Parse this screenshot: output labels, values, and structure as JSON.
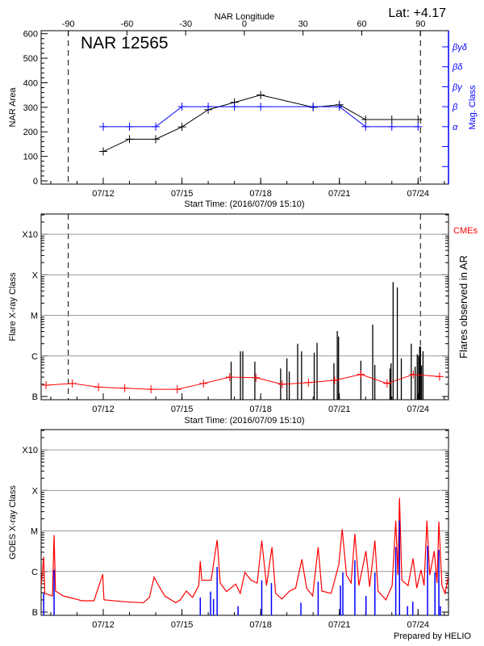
{
  "time_axis": {
    "start": "2016-07-09T15:10",
    "end": "2016-07-25T03:50",
    "ticks": [
      "2016-07-12T00:00",
      "2016-07-15T00:00",
      "2016-07-18T00:00",
      "2016-07-21T00:00",
      "2016-07-24T00:00"
    ],
    "tick_labels": [
      "07/12",
      "07/15",
      "07/18",
      "07/21",
      "07/24"
    ],
    "label": "Start Time: (2016/07/09 15:10)"
  },
  "footer": {
    "prepared_by": "Prepared by HELIO"
  },
  "chart_data": [
    {
      "type": "line",
      "title": "NAR 12565",
      "latitude_label": "Lat:  +4.17",
      "top_axis": {
        "label": "NAR Longitude",
        "ticks": [
          -90,
          -60,
          -30,
          0,
          30,
          60,
          90
        ],
        "tick_labels": [
          "-90",
          "-60",
          "-30",
          "0",
          "30",
          "60",
          "90"
        ],
        "limb_dates": {
          "-90": "2016-07-10T16:00",
          "90": "2016-07-24T02:10"
        },
        "dashed_lines": [
          -90,
          90
        ]
      },
      "ylabel": "NAR Area",
      "ylim": [
        0,
        600
      ],
      "yticks": [
        0,
        100,
        200,
        300,
        400,
        500,
        600
      ],
      "ytick_labels": [
        "0",
        "100",
        "200",
        "300",
        "400",
        "500",
        "600"
      ],
      "right_axis": {
        "label": "Mag. Class",
        "color": "#0000ff",
        "ylim": [
          -0.88,
          6.81
        ],
        "tick_labels": [
          "",
          "",
          "α",
          "β",
          "βγ",
          "βδ",
          "βγδ"
        ]
      },
      "area_series": {
        "color": "#000000",
        "points": [
          {
            "t": "2016-07-12T00:00",
            "v": 120
          },
          {
            "t": "2016-07-13T00:00",
            "v": 170
          },
          {
            "t": "2016-07-14T00:00",
            "v": 170
          },
          {
            "t": "2016-07-15T00:00",
            "v": 220
          },
          {
            "t": "2016-07-16T00:00",
            "v": 290
          },
          {
            "t": "2016-07-17T00:00",
            "v": 320
          },
          {
            "t": "2016-07-18T00:00",
            "v": 350
          },
          {
            "t": "2016-07-20T00:00",
            "v": 300
          },
          {
            "t": "2016-07-21T00:00",
            "v": 310
          },
          {
            "t": "2016-07-22T00:00",
            "v": 250
          },
          {
            "t": "2016-07-23T00:00",
            "v": 250
          },
          {
            "t": "2016-07-24T00:00",
            "v": 250
          }
        ]
      },
      "mag_series": {
        "color": "#0000ff",
        "points": [
          {
            "t": "2016-07-12T00:00",
            "c": "α"
          },
          {
            "t": "2016-07-13T00:00",
            "c": "α"
          },
          {
            "t": "2016-07-14T00:00",
            "c": "α"
          },
          {
            "t": "2016-07-15T00:00",
            "c": "β"
          },
          {
            "t": "2016-07-16T00:00",
            "c": "β"
          },
          {
            "t": "2016-07-17T00:00",
            "c": "β"
          },
          {
            "t": "2016-07-18T00:00",
            "c": "β"
          },
          {
            "t": "2016-07-20T00:00",
            "c": "β"
          },
          {
            "t": "2016-07-21T00:00",
            "c": "β"
          },
          {
            "t": "2016-07-22T00:00",
            "c": "α"
          },
          {
            "t": "2016-07-23T00:00",
            "c": "α"
          },
          {
            "t": "2016-07-24T00:00",
            "c": "α"
          }
        ]
      }
    },
    {
      "type": "bar",
      "ylabel": "Flare X-ray Class",
      "right_label": "Flares observed in AR",
      "legend": {
        "label": "CMEs",
        "color": "#ff0000"
      },
      "yscale": "log",
      "ylim": [
        1e-07,
        0.00316
      ],
      "yticks": [
        1e-07,
        1e-06,
        1e-05,
        0.0001,
        0.001
      ],
      "ytick_labels": [
        "B",
        "C",
        "M",
        "X",
        "X10"
      ],
      "grid": true,
      "flares": [
        {
          "t": "2016-07-16T21:00",
          "class": "B7.2"
        },
        {
          "t": "2016-07-17T05:30",
          "class": "C1.3"
        },
        {
          "t": "2016-07-17T07:40",
          "class": "C1.3"
        },
        {
          "t": "2016-07-17T18:40",
          "class": "B7.2"
        },
        {
          "t": "2016-07-18T18:15",
          "class": "B4.9"
        },
        {
          "t": "2016-07-19T00:00",
          "class": "B8.7"
        },
        {
          "t": "2016-07-19T02:10",
          "class": "B4.1"
        },
        {
          "t": "2016-07-19T09:50",
          "class": "C2.0"
        },
        {
          "t": "2016-07-19T13:25",
          "class": "C1.3"
        },
        {
          "t": "2016-07-20T01:00",
          "class": "C1.2"
        },
        {
          "t": "2016-07-20T03:35",
          "class": "C2.1"
        },
        {
          "t": "2016-07-20T19:00",
          "class": "B6.6"
        },
        {
          "t": "2016-07-20T22:05",
          "class": "C4.1"
        },
        {
          "t": "2016-07-20T23:15",
          "class": "C3.0"
        },
        {
          "t": "2016-07-21T19:40",
          "class": "B7.6"
        },
        {
          "t": "2016-07-22T06:30",
          "class": "C5.9"
        },
        {
          "t": "2016-07-22T08:25",
          "class": "B6.0"
        },
        {
          "t": "2016-07-22T22:20",
          "class": "B4.9"
        },
        {
          "t": "2016-07-22T23:15",
          "class": "B6.6"
        },
        {
          "t": "2016-07-23T01:10",
          "class": "M6.6"
        },
        {
          "t": "2016-07-23T05:00",
          "class": "M4.9"
        },
        {
          "t": "2016-07-23T08:40",
          "class": "B8.7"
        },
        {
          "t": "2016-07-23T17:45",
          "class": "C2.0"
        },
        {
          "t": "2016-07-23T21:20",
          "class": "B5.4"
        },
        {
          "t": "2016-07-23T23:15",
          "class": "C1.1"
        },
        {
          "t": "2016-07-24T00:30",
          "class": "C1.0"
        },
        {
          "t": "2016-07-24T01:25",
          "class": "C1.7"
        },
        {
          "t": "2016-07-24T02:10",
          "class": "C1.7"
        },
        {
          "t": "2016-07-24T03:10",
          "class": "B5.8"
        },
        {
          "t": "2016-07-24T04:30",
          "class": "C1.3"
        }
      ],
      "red_series": {
        "color": "#ff0000",
        "points": [
          {
            "t": "2016-07-09T19:40",
            "v": 1.9e-07
          },
          {
            "t": "2016-07-10T19:40",
            "v": 2.1e-07
          },
          {
            "t": "2016-07-11T19:40",
            "v": 1.7e-07
          },
          {
            "t": "2016-07-12T19:40",
            "v": 1.6e-07
          },
          {
            "t": "2016-07-13T19:40",
            "v": 1.5e-07
          },
          {
            "t": "2016-07-14T19:40",
            "v": 1.5e-07
          },
          {
            "t": "2016-07-15T19:40",
            "v": 2.1e-07
          },
          {
            "t": "2016-07-16T19:40",
            "v": 3e-07
          },
          {
            "t": "2016-07-17T19:40",
            "v": 2.9e-07
          },
          {
            "t": "2016-07-18T19:40",
            "v": 2e-07
          },
          {
            "t": "2016-07-19T19:40",
            "v": 2.2e-07
          },
          {
            "t": "2016-07-20T19:40",
            "v": 2.5e-07
          },
          {
            "t": "2016-07-21T19:40",
            "v": 3.5e-07
          },
          {
            "t": "2016-07-22T19:40",
            "v": 2.1e-07
          },
          {
            "t": "2016-07-23T19:40",
            "v": 3.5e-07
          },
          {
            "t": "2016-07-24T19:40",
            "v": 3.1e-07
          }
        ]
      }
    },
    {
      "type": "line",
      "ylabel": "GOES X-ray Class",
      "yscale": "log",
      "ylim": [
        1e-07,
        0.00316
      ],
      "yticks": [
        1e-07,
        1e-06,
        1e-05,
        0.0001,
        0.001
      ],
      "ytick_labels": [
        "B",
        "C",
        "M",
        "X",
        "X10"
      ],
      "grid": true,
      "series": [
        {
          "color": "#ff0000",
          "style": "line",
          "points": [
            {
              "t": "2016-07-09T15:10",
              "v": 4.5e-07
            },
            {
              "t": "2016-07-09T17:30",
              "v": 2.3e-06
            },
            {
              "t": "2016-07-09T18:30",
              "v": 2.9e-07
            },
            {
              "t": "2016-07-10T01:30",
              "v": 2.5e-07
            },
            {
              "t": "2016-07-10T03:00",
              "v": 7.9e-06
            },
            {
              "t": "2016-07-10T04:20",
              "v": 3.3e-07
            },
            {
              "t": "2016-07-10T11:20",
              "v": 2.5e-07
            },
            {
              "t": "2016-07-10T22:40",
              "v": 2.1e-07
            },
            {
              "t": "2016-07-11T04:20",
              "v": 1.9e-07
            },
            {
              "t": "2016-07-11T15:30",
              "v": 1.9e-07
            },
            {
              "t": "2016-07-11T23:30",
              "v": 8.5e-07
            },
            {
              "t": "2016-07-12T00:40",
              "v": 2e-07
            },
            {
              "t": "2016-07-12T19:40",
              "v": 1.8e-07
            },
            {
              "t": "2016-07-13T12:40",
              "v": 1.7e-07
            },
            {
              "t": "2016-07-13T18:15",
              "v": 2.3e-07
            },
            {
              "t": "2016-07-13T22:30",
              "v": 7.3e-07
            },
            {
              "t": "2016-07-14T02:40",
              "v": 4.5e-07
            },
            {
              "t": "2016-07-14T08:20",
              "v": 2.5e-07
            },
            {
              "t": "2016-07-14T18:15",
              "v": 1.7e-07
            },
            {
              "t": "2016-07-14T22:25",
              "v": 2e-07
            },
            {
              "t": "2016-07-15T04:00",
              "v": 3.3e-07
            },
            {
              "t": "2016-07-15T09:40",
              "v": 2.3e-07
            },
            {
              "t": "2016-07-15T15:20",
              "v": 4.5e-07
            },
            {
              "t": "2016-07-15T16:45",
              "v": 1.8e-06
            },
            {
              "t": "2016-07-15T18:10",
              "v": 6.1e-07
            },
            {
              "t": "2016-07-16T02:40",
              "v": 6.1e-07
            },
            {
              "t": "2016-07-16T08:10",
              "v": 6e-06
            },
            {
              "t": "2016-07-16T11:00",
              "v": 5.2e-07
            },
            {
              "t": "2016-07-16T16:40",
              "v": 3.2e-07
            },
            {
              "t": "2016-07-17T01:10",
              "v": 4.9e-07
            },
            {
              "t": "2016-07-17T05:20",
              "v": 2.9e-07
            },
            {
              "t": "2016-07-17T09:35",
              "v": 9.5e-07
            },
            {
              "t": "2016-07-17T15:10",
              "v": 6.1e-07
            },
            {
              "t": "2016-07-17T20:50",
              "v": 5.2e-07
            },
            {
              "t": "2016-07-18T01:00",
              "v": 5.8e-06
            },
            {
              "t": "2016-07-18T05:20",
              "v": 4.5e-07
            },
            {
              "t": "2016-07-18T10:20",
              "v": 4e-06
            },
            {
              "t": "2016-07-18T13:40",
              "v": 2.9e-07
            },
            {
              "t": "2016-07-18T19:20",
              "v": 2.1e-07
            },
            {
              "t": "2016-07-19T02:25",
              "v": 3.3e-07
            },
            {
              "t": "2016-07-19T08:00",
              "v": 3.9e-07
            },
            {
              "t": "2016-07-19T13:40",
              "v": 2e-06
            },
            {
              "t": "2016-07-19T18:00",
              "v": 3.9e-07
            },
            {
              "t": "2016-07-19T23:35",
              "v": 2.5e-07
            },
            {
              "t": "2016-07-20T04:35",
              "v": 4e-06
            },
            {
              "t": "2016-07-20T08:00",
              "v": 3.3e-07
            },
            {
              "t": "2016-07-20T16:30",
              "v": 2.9e-07
            },
            {
              "t": "2016-07-20T23:30",
              "v": 1.5e-06
            },
            {
              "t": "2016-07-21T02:35",
              "v": 1.1e-05
            },
            {
              "t": "2016-07-21T06:30",
              "v": 8.2e-07
            },
            {
              "t": "2016-07-21T10:45",
              "v": 5.2e-07
            },
            {
              "t": "2016-07-21T14:10",
              "v": 8.5e-06
            },
            {
              "t": "2016-07-21T17:50",
              "v": 4.5e-07
            },
            {
              "t": "2016-07-22T00:20",
              "v": 3.2e-06
            },
            {
              "t": "2016-07-22T03:40",
              "v": 4.2e-07
            },
            {
              "t": "2016-07-22T08:30",
              "v": 5.8e-06
            },
            {
              "t": "2016-07-22T11:20",
              "v": 3.3e-07
            },
            {
              "t": "2016-07-22T18:35",
              "v": 2e-07
            },
            {
              "t": "2016-07-23T00:15",
              "v": 4.5e-07
            },
            {
              "t": "2016-07-23T03:35",
              "v": 1.8e-05
            },
            {
              "t": "2016-07-23T05:35",
              "v": 8.2e-07
            },
            {
              "t": "2016-07-23T07:00",
              "v": 6.6e-05
            },
            {
              "t": "2016-07-23T09:10",
              "v": 6.1e-07
            },
            {
              "t": "2016-07-23T14:50",
              "v": 4.5e-07
            },
            {
              "t": "2016-07-23T19:25",
              "v": 2.1e-06
            },
            {
              "t": "2016-07-23T22:50",
              "v": 3.9e-07
            },
            {
              "t": "2016-07-24T02:40",
              "v": 1.1e-06
            },
            {
              "t": "2016-07-24T05:30",
              "v": 4.5e-07
            },
            {
              "t": "2016-07-24T08:05",
              "v": 1.8e-05
            },
            {
              "t": "2016-07-24T10:40",
              "v": 8.2e-07
            },
            {
              "t": "2016-07-24T14:50",
              "v": 3.2e-06
            },
            {
              "t": "2016-07-24T17:20",
              "v": 5.2e-07
            },
            {
              "t": "2016-07-24T19:00",
              "v": 1.7e-05
            },
            {
              "t": "2016-07-24T21:50",
              "v": 4.5e-07
            },
            {
              "t": "2016-07-25T00:40",
              "v": 2.9e-07
            },
            {
              "t": "2016-07-25T03:30",
              "v": 7.1e-07
            }
          ]
        },
        {
          "color": "#0000ff",
          "style": "spikes",
          "points": [
            {
              "t": "2016-07-09T17:30",
              "v": 2.9e-07
            },
            {
              "t": "2016-07-10T03:00",
              "v": 1.1e-06
            },
            {
              "t": "2016-07-15T16:45",
              "v": 2.3e-07
            },
            {
              "t": "2016-07-16T02:10",
              "v": 3.2e-07
            },
            {
              "t": "2016-07-16T04:50",
              "v": 2.1e-07
            },
            {
              "t": "2016-07-16T08:10",
              "v": 1.3e-06
            },
            {
              "t": "2016-07-17T03:20",
              "v": 1.4e-07
            },
            {
              "t": "2016-07-18T01:00",
              "v": 6.1e-07
            },
            {
              "t": "2016-07-18T09:50",
              "v": 5.2e-07
            },
            {
              "t": "2016-07-19T12:50",
              "v": 1.7e-07
            },
            {
              "t": "2016-07-20T04:35",
              "v": 5.6e-07
            },
            {
              "t": "2016-07-21T01:00",
              "v": 4.5e-07
            },
            {
              "t": "2016-07-21T03:10",
              "v": 9.5e-07
            },
            {
              "t": "2016-07-21T14:10",
              "v": 1.9e-06
            },
            {
              "t": "2016-07-22T00:20",
              "v": 2.5e-07
            },
            {
              "t": "2016-07-22T08:30",
              "v": 9.5e-07
            },
            {
              "t": "2016-07-23T03:35",
              "v": 4e-06
            },
            {
              "t": "2016-07-23T07:00",
              "v": 1.8e-05
            },
            {
              "t": "2016-07-23T14:20",
              "v": 1.4e-07
            },
            {
              "t": "2016-07-23T19:10",
              "v": 1.8e-07
            },
            {
              "t": "2016-07-24T08:40",
              "v": 4.3e-06
            },
            {
              "t": "2016-07-24T15:25",
              "v": 9.5e-07
            },
            {
              "t": "2016-07-24T19:00",
              "v": 3.4e-06
            },
            {
              "t": "2016-07-24T20:25",
              "v": 1.4e-07
            }
          ]
        }
      ]
    }
  ]
}
